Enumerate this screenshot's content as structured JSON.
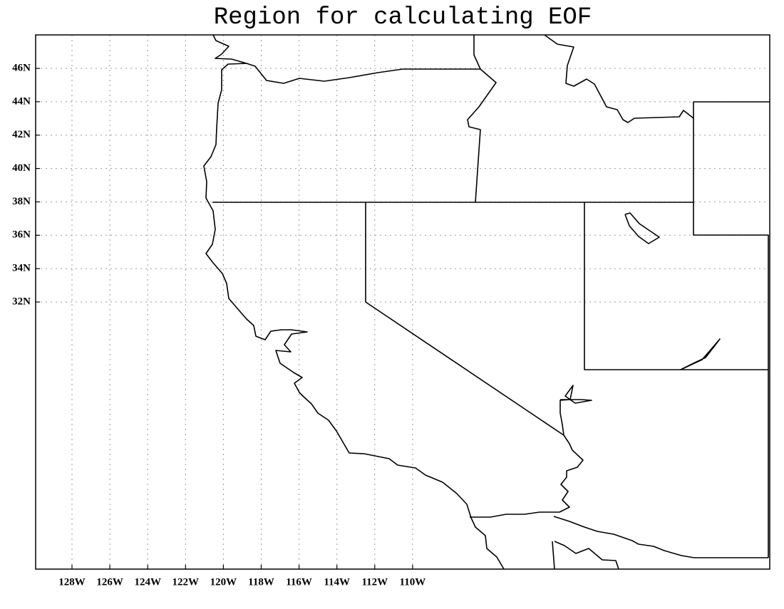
{
  "title": "Region for calculating EOF",
  "lon_labels": [
    "128W",
    "126W",
    "124W",
    "122W",
    "120W",
    "118W",
    "116W",
    "114W",
    "112W",
    "110W"
  ],
  "lat_labels": [
    "46N",
    "44N",
    "42N",
    "40N",
    "38N",
    "36N",
    "34N",
    "32N"
  ]
}
